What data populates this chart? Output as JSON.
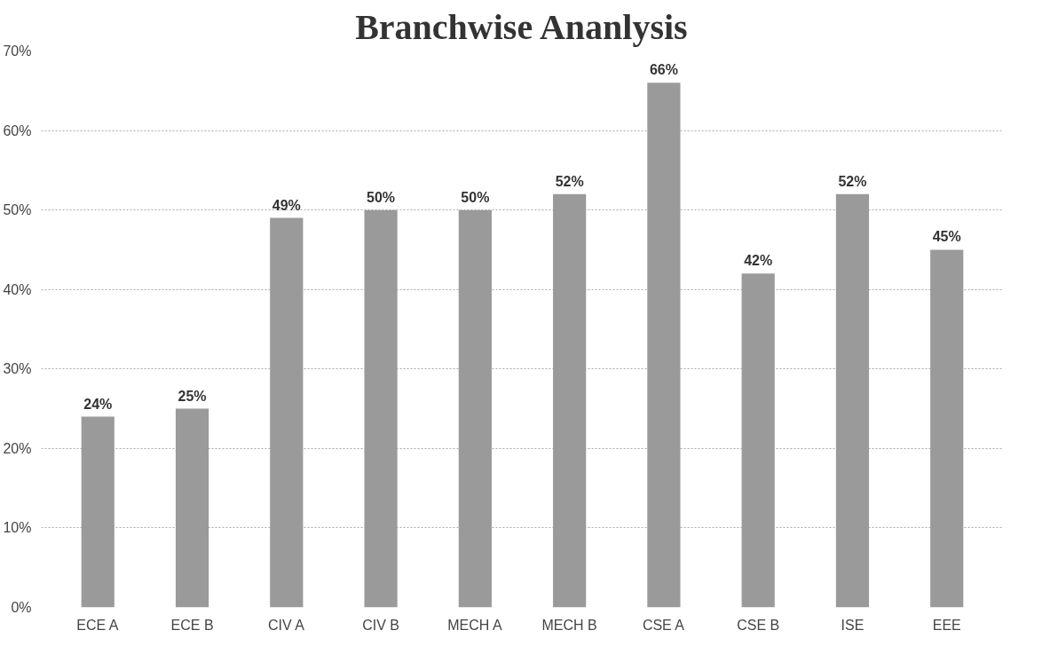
{
  "chart_data": {
    "type": "bar",
    "title": "Branchwise Ananlysis",
    "categories": [
      "ECE A",
      "ECE B",
      "CIV A",
      "CIV B",
      "MECH A",
      "MECH B",
      "CSE A",
      "CSE B",
      "ISE",
      "EEE"
    ],
    "values": [
      24,
      25,
      49,
      50,
      50,
      52,
      66,
      42,
      52,
      45
    ],
    "value_labels": [
      "24%",
      "25%",
      "49%",
      "50%",
      "50%",
      "52%",
      "66%",
      "42%",
      "52%",
      "45%"
    ],
    "color": "#9a9a9a",
    "ylim": [
      0,
      70
    ],
    "yticks": [
      {
        "value": 0,
        "label": "0%"
      },
      {
        "value": 10,
        "label": "10%"
      },
      {
        "value": 20,
        "label": "20%"
      },
      {
        "value": 30,
        "label": "30%"
      },
      {
        "value": 40,
        "label": "40%"
      },
      {
        "value": 50,
        "label": "50%"
      },
      {
        "value": 60,
        "label": "60%"
      },
      {
        "value": 70,
        "label": "70%"
      }
    ],
    "grid": "y"
  }
}
